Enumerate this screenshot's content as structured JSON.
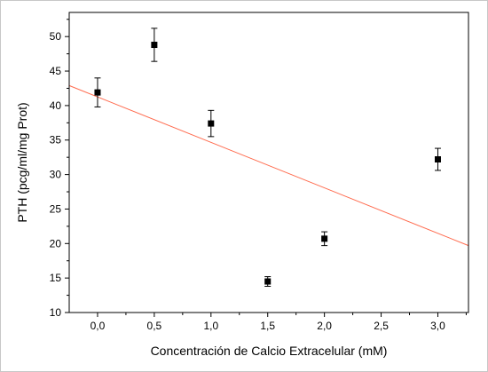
{
  "chart_data": {
    "type": "scatter",
    "xlabel": "Concentración de Calcio Extracelular (mM)",
    "ylabel": "PTH (pcg/ml/mg Prot)",
    "xlim": [
      -0.25,
      3.27
    ],
    "ylim": [
      10,
      53.5
    ],
    "x_ticks": [
      0,
      0.5,
      1,
      1.5,
      2,
      2.5,
      3
    ],
    "x_tick_labels": [
      "0,0",
      "0,5",
      "1,0",
      "1,5",
      "2,0",
      "2,5",
      "3,0"
    ],
    "y_ticks": [
      10,
      15,
      20,
      25,
      30,
      35,
      40,
      45,
      50
    ],
    "y_tick_labels": [
      "10",
      "15",
      "20",
      "25",
      "30",
      "35",
      "40",
      "45",
      "50"
    ],
    "grid": false,
    "series": [
      {
        "marker": "square",
        "color": "#000000",
        "points": [
          {
            "x": 0.0,
            "y": 41.9,
            "err": 2.1
          },
          {
            "x": 0.5,
            "y": 48.8,
            "err": 2.4
          },
          {
            "x": 1.0,
            "y": 37.4,
            "err": 1.9
          },
          {
            "x": 1.5,
            "y": 14.5,
            "err": 0.7
          },
          {
            "x": 2.0,
            "y": 20.7,
            "err": 1.0
          },
          {
            "x": 3.0,
            "y": 32.2,
            "err": 1.6
          }
        ]
      }
    ],
    "fit_line": {
      "color": "#ff6a4d",
      "x": [
        -0.25,
        3.27
      ],
      "y": [
        42.9,
        19.7
      ]
    }
  }
}
